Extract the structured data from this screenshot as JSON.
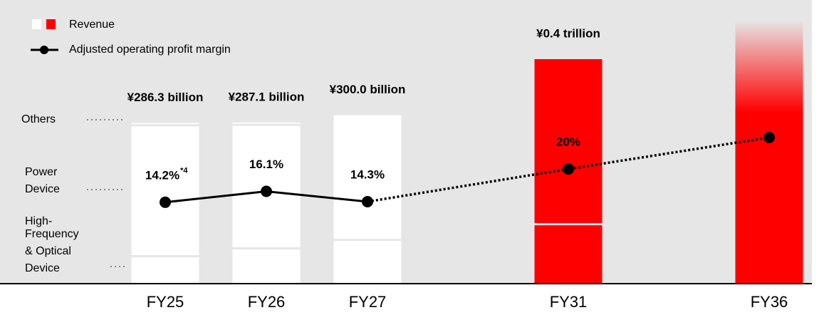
{
  "chart_data": {
    "type": "bar",
    "categories": [
      "FY25",
      "FY26",
      "FY27",
      "FY31",
      "FY36"
    ],
    "legend": {
      "revenue": "Revenue",
      "margin": "Adjusted operating profit margin"
    },
    "revenue": {
      "name": "Revenue",
      "values": [
        286.3,
        287.1,
        300.0,
        400,
        470
      ],
      "value_labels": [
        "¥286.3 billion",
        "¥287.1 billion",
        "¥300.0 billion",
        "¥0.4 trillion",
        null
      ],
      "bar_colors": [
        "#ffffff",
        "#ffffff",
        "#ffffff",
        "#ff0000",
        "#ff0000"
      ]
    },
    "segments": [
      {
        "name": [
          "High-",
          "Frequency",
          "& Optical",
          "Device"
        ],
        "values": [
          47,
          61,
          76,
          104,
          null
        ]
      },
      {
        "name": [
          "Power",
          "Device"
        ],
        "values": [
          233.3,
          220.1,
          224,
          296,
          null
        ]
      },
      {
        "name": [
          "Others"
        ],
        "values": [
          6,
          6,
          null,
          null,
          null
        ]
      }
    ],
    "margin": {
      "type": "line",
      "name": "Adjusted operating profit margin",
      "axis": "y2",
      "color": "#000000",
      "values": [
        14.2,
        16.1,
        14.3,
        20,
        25.5
      ],
      "value_labels": [
        "14.2%",
        "16.1%",
        "14.3%",
        "20%",
        null
      ],
      "footnote_marks": [
        "*4",
        null,
        null,
        null,
        null
      ],
      "dotted_from": 2
    },
    "ylim": [
      0,
      480
    ],
    "y2lim": [
      0,
      47
    ],
    "background": "#e6e6e6"
  }
}
